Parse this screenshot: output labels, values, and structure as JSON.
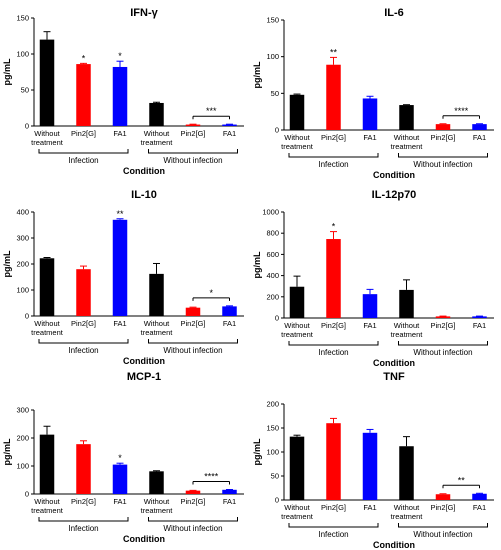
{
  "chart_data": [
    {
      "type": "bar",
      "title": "IFN-γ",
      "ylabel": "pg/mL",
      "xlabel": "Condition",
      "ylim": [
        0,
        150
      ],
      "yticks": [
        0,
        50,
        100,
        150
      ],
      "categories": [
        "Without treatment",
        "Pin2[G]",
        "FA1",
        "Without treatment",
        "Pin2[G]",
        "FA1"
      ],
      "values": [
        120,
        86,
        82,
        32,
        2,
        2
      ],
      "errors": [
        11,
        1,
        8,
        1,
        0.5,
        0.5
      ],
      "colors": [
        "#000000",
        "#ff0000",
        "#0000ff",
        "#000000",
        "#ff0000",
        "#0000ff"
      ],
      "groups": [
        {
          "label": "Infection",
          "from": 0,
          "to": 2
        },
        {
          "label": "Without infection",
          "from": 3,
          "to": 5
        }
      ],
      "bar_sig": [
        {
          "index": 1,
          "text": "*"
        },
        {
          "index": 2,
          "text": "*"
        }
      ],
      "bracket_sig": [
        {
          "from": 4,
          "to": 5,
          "text": "***"
        }
      ]
    },
    {
      "type": "bar",
      "title": "IL-6",
      "ylabel": "pg/mL",
      "xlabel": "Condition",
      "ylim": [
        0,
        150
      ],
      "yticks": [
        0,
        50,
        100,
        150
      ],
      "categories": [
        "Without treatment",
        "Pin2[G]",
        "FA1",
        "Without treatment",
        "Pin2[G]",
        "FA1"
      ],
      "values": [
        48,
        89,
        43,
        34,
        8,
        8
      ],
      "errors": [
        1,
        10,
        3,
        0.5,
        0.5,
        0.5
      ],
      "colors": [
        "#000000",
        "#ff0000",
        "#0000ff",
        "#000000",
        "#ff0000",
        "#0000ff"
      ],
      "groups": [
        {
          "label": "Infection",
          "from": 0,
          "to": 2
        },
        {
          "label": "Without infection",
          "from": 3,
          "to": 5
        }
      ],
      "bar_sig": [
        {
          "index": 1,
          "text": "**"
        }
      ],
      "bracket_sig": [
        {
          "from": 4,
          "to": 5,
          "text": "****"
        }
      ]
    },
    {
      "type": "bar",
      "title": "IL-10",
      "ylabel": "pg/mL",
      "xlabel": "Condition",
      "ylim": [
        0,
        400
      ],
      "yticks": [
        0,
        100,
        200,
        300,
        400
      ],
      "categories": [
        "Without treatment",
        "Pin2[G]",
        "FA1",
        "Without treatment",
        "Pin2[G]",
        "FA1"
      ],
      "values": [
        222,
        180,
        370,
        162,
        32,
        37
      ],
      "errors": [
        3,
        12,
        4,
        40,
        2,
        2
      ],
      "colors": [
        "#000000",
        "#ff0000",
        "#0000ff",
        "#000000",
        "#ff0000",
        "#0000ff"
      ],
      "groups": [
        {
          "label": "Infection",
          "from": 0,
          "to": 2
        },
        {
          "label": "Without infection",
          "from": 3,
          "to": 5
        }
      ],
      "bar_sig": [
        {
          "index": 2,
          "text": "**"
        }
      ],
      "bracket_sig": [
        {
          "from": 4,
          "to": 5,
          "text": "*"
        }
      ]
    },
    {
      "type": "bar",
      "title": "IL-12p70",
      "ylabel": "pg/mL",
      "xlabel": "Condition",
      "ylim": [
        0,
        1000
      ],
      "yticks": [
        0,
        200,
        400,
        600,
        800,
        1000
      ],
      "categories": [
        "Without treatment",
        "Pin2[G]",
        "FA1",
        "Without treatment",
        "Pin2[G]",
        "FA1"
      ],
      "values": [
        295,
        745,
        225,
        265,
        15,
        15
      ],
      "errors": [
        100,
        70,
        45,
        95,
        3,
        3
      ],
      "colors": [
        "#000000",
        "#ff0000",
        "#0000ff",
        "#000000",
        "#ff0000",
        "#0000ff"
      ],
      "groups": [
        {
          "label": "Infection",
          "from": 0,
          "to": 2
        },
        {
          "label": "Without infection",
          "from": 3,
          "to": 5
        }
      ],
      "bar_sig": [
        {
          "index": 1,
          "text": "*"
        }
      ],
      "bracket_sig": []
    },
    {
      "type": "bar",
      "title": "MCP-1",
      "ylabel": "pg/mL",
      "xlabel": "Condition",
      "ylim": [
        0,
        300
      ],
      "yticks": [
        0,
        100,
        200,
        300
      ],
      "categories": [
        "Without treatment",
        "Pin2[G]",
        "FA1",
        "Without treatment",
        "Pin2[G]",
        "FA1"
      ],
      "values": [
        212,
        178,
        105,
        81,
        12,
        15
      ],
      "errors": [
        30,
        12,
        5,
        2,
        1,
        1
      ],
      "colors": [
        "#000000",
        "#ff0000",
        "#0000ff",
        "#000000",
        "#ff0000",
        "#0000ff"
      ],
      "groups": [
        {
          "label": "Infection",
          "from": 0,
          "to": 2
        },
        {
          "label": "Without infection",
          "from": 3,
          "to": 5
        }
      ],
      "bar_sig": [
        {
          "index": 2,
          "text": "*"
        }
      ],
      "bracket_sig": [
        {
          "from": 4,
          "to": 5,
          "text": "****"
        }
      ]
    },
    {
      "type": "bar",
      "title": "TNF",
      "ylabel": "pg/mL",
      "xlabel": "Condition",
      "ylim": [
        0,
        200
      ],
      "yticks": [
        0,
        50,
        100,
        150,
        200
      ],
      "categories": [
        "Without treatment",
        "Pin2[G]",
        "FA1",
        "Without treatment",
        "Pin2[G]",
        "FA1"
      ],
      "values": [
        132,
        160,
        140,
        112,
        12,
        13
      ],
      "errors": [
        3,
        10,
        7,
        20,
        1,
        1
      ],
      "colors": [
        "#000000",
        "#ff0000",
        "#0000ff",
        "#000000",
        "#ff0000",
        "#0000ff"
      ],
      "groups": [
        {
          "label": "Infection",
          "from": 0,
          "to": 2
        },
        {
          "label": "Without infection",
          "from": 3,
          "to": 5
        }
      ],
      "bar_sig": [],
      "bracket_sig": [
        {
          "from": 4,
          "to": 5,
          "text": "**"
        }
      ]
    }
  ]
}
